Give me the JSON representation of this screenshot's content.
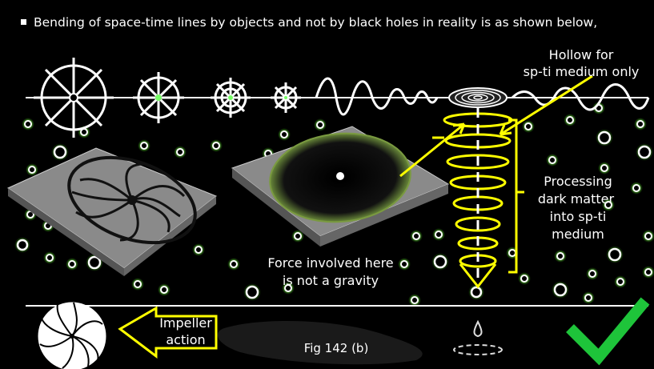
{
  "bullet": "Bending of space-time lines by objects and not by black holes in reality is as shown below,",
  "labels": {
    "hollow": [
      "Hollow for",
      "sp-ti medium only"
    ],
    "processing": [
      "Processing",
      "dark matter",
      "into sp-ti",
      "medium"
    ],
    "force": [
      "Force involved here",
      "is not a gravity"
    ],
    "impeller": [
      "Impeller",
      "action"
    ],
    "figure": "Fig 142 (b)"
  }
}
